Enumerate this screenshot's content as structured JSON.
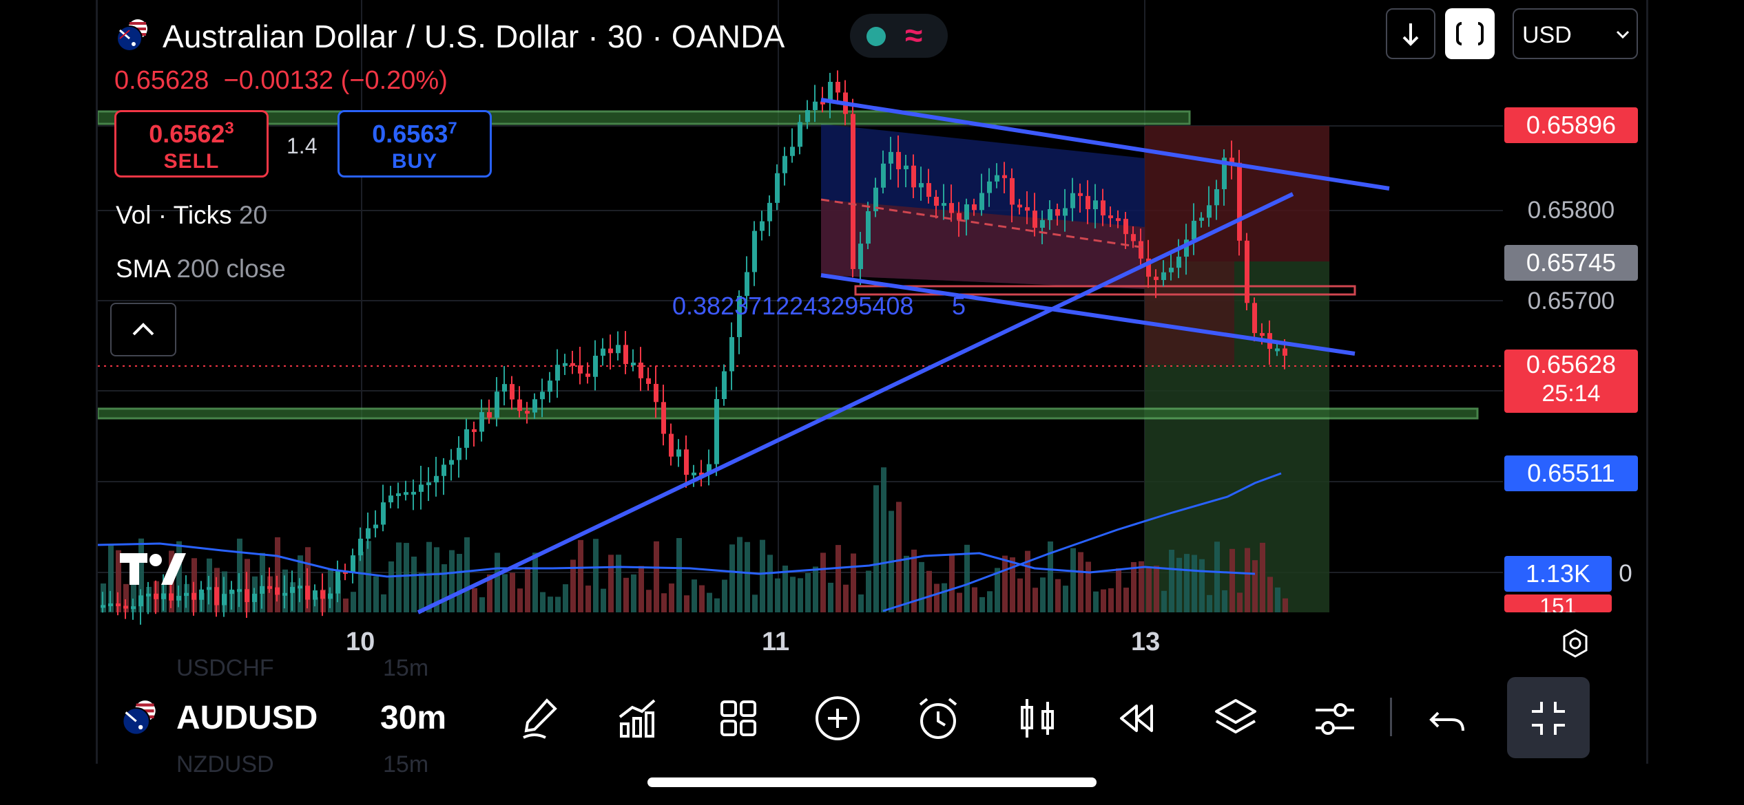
{
  "header": {
    "title": "Australian Dollar / U.S. Dollar · 30 · OANDA",
    "last_price": "0.65628",
    "change": "−0.00132",
    "change_pct": "(−0.20%)",
    "currency_selector": "USD"
  },
  "trade": {
    "sell_price": "0.6562",
    "sell_price_sup": "3",
    "sell_label": "SELL",
    "spread": "1.4",
    "buy_price": "0.6563",
    "buy_price_sup": "7",
    "buy_label": "BUY"
  },
  "indicators": {
    "vol_name": "Vol · Ticks",
    "vol_value": "20",
    "sma_name": "SMA",
    "sma_value": "200 close"
  },
  "price_axis": {
    "tag_top": "0.65896",
    "label_1": "0.65800",
    "tag_grey": "0.65745",
    "label_2": "0.65700",
    "tag_current": "0.65628",
    "countdown": "25:14",
    "tag_sma": "0.65511",
    "tag_volume": "1.13K",
    "tag_volume_red": "151",
    "axis_fragment": "0"
  },
  "annotation_text": "0.3823712243295408",
  "annotation_fragment": "5",
  "date_axis": {
    "d1": "10",
    "d2": "11",
    "d3": "13"
  },
  "toolbar": {
    "symbol": "AUDUSD",
    "interval": "30m",
    "ghost_symbol_1": "USDCHF",
    "ghost_interval_1": "15m",
    "ghost_symbol_2": "NZDUSD",
    "ghost_interval_2": "15m"
  },
  "colors": {
    "bull": "#26a69a",
    "bear": "#f23645",
    "trend_blue": "#3d5afe",
    "sma": "#2962ff",
    "zone_green": "#4caf50"
  },
  "icons": [
    "flag-icon",
    "download-icon",
    "fullscreen-icon",
    "chevron-down-icon",
    "chevron-up-icon",
    "settings-icon",
    "brush-icon",
    "indicators-icon",
    "templates-icon",
    "add-icon",
    "alert-icon",
    "bar-style-icon",
    "replay-icon",
    "layers-icon",
    "sliders-icon",
    "undo-icon",
    "exit-fullscreen-icon"
  ]
}
